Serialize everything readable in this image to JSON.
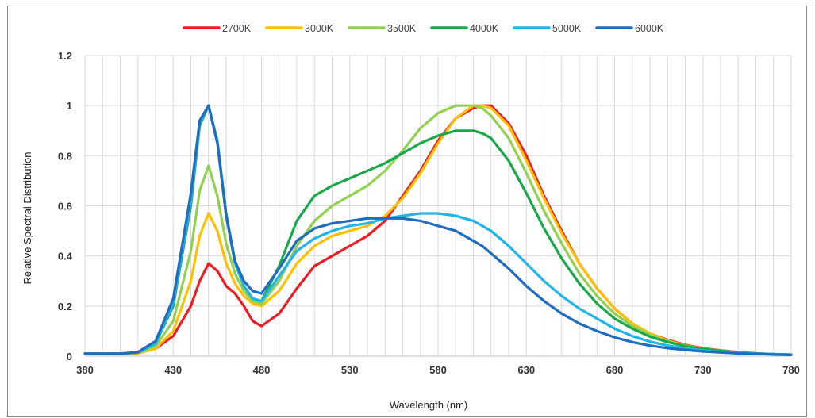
{
  "chart_data": {
    "type": "line",
    "title": "",
    "xlabel": "Wavelength (nm)",
    "ylabel": "Relative Spectral Distribution",
    "xlim": [
      380,
      780
    ],
    "ylim": [
      0,
      1.2
    ],
    "xticks": [
      "380",
      "430",
      "480",
      "530",
      "580",
      "630",
      "680",
      "730",
      "780"
    ],
    "yticks": [
      "0",
      "0.2",
      "0.4",
      "0.6",
      "0.8",
      "1",
      "1.2"
    ],
    "grid": "vertical every 10 nm, horizontal every 0.2",
    "legend_position": "top",
    "series": [
      {
        "name": "2700K",
        "color": "#ee1c24",
        "x": [
          380,
          400,
          410,
          420,
          430,
          440,
          445,
          450,
          455,
          460,
          465,
          470,
          475,
          480,
          490,
          500,
          510,
          520,
          530,
          540,
          550,
          560,
          570,
          580,
          590,
          600,
          605,
          610,
          620,
          630,
          640,
          650,
          660,
          670,
          680,
          690,
          700,
          710,
          720,
          730,
          740,
          750,
          760,
          770,
          780
        ],
        "y": [
          0.01,
          0.01,
          0.012,
          0.03,
          0.08,
          0.2,
          0.3,
          0.37,
          0.34,
          0.28,
          0.25,
          0.2,
          0.14,
          0.12,
          0.17,
          0.27,
          0.36,
          0.4,
          0.44,
          0.48,
          0.54,
          0.64,
          0.74,
          0.86,
          0.95,
          0.99,
          1.0,
          1.0,
          0.93,
          0.8,
          0.64,
          0.5,
          0.37,
          0.27,
          0.19,
          0.13,
          0.09,
          0.065,
          0.045,
          0.032,
          0.023,
          0.016,
          0.011,
          0.008,
          0.006
        ]
      },
      {
        "name": "3000K",
        "color": "#ffc000",
        "x": [
          380,
          400,
          410,
          420,
          430,
          440,
          445,
          450,
          455,
          460,
          465,
          470,
          475,
          480,
          490,
          500,
          510,
          520,
          530,
          540,
          550,
          560,
          570,
          580,
          590,
          600,
          605,
          610,
          620,
          630,
          640,
          650,
          660,
          670,
          680,
          690,
          700,
          710,
          720,
          730,
          740,
          750,
          760,
          770,
          780
        ],
        "y": [
          0.01,
          0.01,
          0.012,
          0.03,
          0.1,
          0.3,
          0.48,
          0.57,
          0.5,
          0.37,
          0.29,
          0.24,
          0.21,
          0.2,
          0.26,
          0.37,
          0.44,
          0.48,
          0.5,
          0.52,
          0.56,
          0.63,
          0.73,
          0.85,
          0.95,
          1.0,
          1.0,
          0.99,
          0.92,
          0.78,
          0.63,
          0.49,
          0.37,
          0.27,
          0.19,
          0.13,
          0.09,
          0.062,
          0.043,
          0.03,
          0.022,
          0.015,
          0.011,
          0.008,
          0.006
        ]
      },
      {
        "name": "3500K",
        "color": "#92d050",
        "x": [
          380,
          400,
          410,
          420,
          430,
          440,
          445,
          450,
          455,
          460,
          465,
          470,
          475,
          480,
          490,
          500,
          510,
          520,
          530,
          540,
          550,
          560,
          570,
          580,
          590,
          600,
          605,
          610,
          620,
          630,
          640,
          650,
          660,
          670,
          680,
          690,
          700,
          710,
          720,
          730,
          740,
          750,
          760,
          770,
          780
        ],
        "y": [
          0.01,
          0.01,
          0.014,
          0.04,
          0.14,
          0.42,
          0.66,
          0.76,
          0.64,
          0.45,
          0.33,
          0.26,
          0.22,
          0.21,
          0.3,
          0.44,
          0.54,
          0.6,
          0.64,
          0.68,
          0.74,
          0.82,
          0.91,
          0.97,
          1.0,
          1.0,
          0.99,
          0.96,
          0.87,
          0.73,
          0.58,
          0.45,
          0.33,
          0.24,
          0.17,
          0.12,
          0.085,
          0.06,
          0.042,
          0.03,
          0.022,
          0.015,
          0.011,
          0.008,
          0.006
        ]
      },
      {
        "name": "4000K",
        "color": "#18a84a",
        "x": [
          380,
          400,
          410,
          420,
          430,
          440,
          445,
          450,
          455,
          460,
          465,
          470,
          475,
          480,
          490,
          500,
          510,
          520,
          530,
          540,
          550,
          560,
          570,
          580,
          590,
          600,
          605,
          610,
          620,
          630,
          640,
          650,
          660,
          670,
          680,
          690,
          700,
          710,
          720,
          730,
          740,
          750,
          760,
          770,
          780
        ],
        "y": [
          0.01,
          0.01,
          0.015,
          0.05,
          0.2,
          0.6,
          0.92,
          1.0,
          0.86,
          0.57,
          0.38,
          0.28,
          0.23,
          0.22,
          0.36,
          0.54,
          0.64,
          0.68,
          0.71,
          0.74,
          0.77,
          0.81,
          0.85,
          0.88,
          0.9,
          0.9,
          0.89,
          0.87,
          0.78,
          0.65,
          0.51,
          0.39,
          0.29,
          0.21,
          0.15,
          0.11,
          0.078,
          0.056,
          0.04,
          0.029,
          0.021,
          0.015,
          0.011,
          0.008,
          0.006
        ]
      },
      {
        "name": "5000K",
        "color": "#1fb4ea",
        "x": [
          380,
          400,
          410,
          420,
          430,
          440,
          445,
          450,
          455,
          460,
          465,
          470,
          475,
          480,
          490,
          500,
          510,
          520,
          530,
          540,
          550,
          560,
          570,
          580,
          590,
          600,
          605,
          610,
          620,
          630,
          640,
          650,
          660,
          670,
          680,
          690,
          700,
          710,
          720,
          730,
          740,
          750,
          760,
          770,
          780
        ],
        "y": [
          0.01,
          0.01,
          0.015,
          0.05,
          0.21,
          0.62,
          0.93,
          1.0,
          0.86,
          0.56,
          0.37,
          0.28,
          0.23,
          0.22,
          0.32,
          0.42,
          0.47,
          0.5,
          0.52,
          0.53,
          0.55,
          0.56,
          0.57,
          0.57,
          0.56,
          0.54,
          0.52,
          0.5,
          0.44,
          0.37,
          0.3,
          0.24,
          0.19,
          0.15,
          0.11,
          0.08,
          0.058,
          0.042,
          0.031,
          0.023,
          0.017,
          0.013,
          0.01,
          0.008,
          0.006
        ]
      },
      {
        "name": "6000K",
        "color": "#1f6cc0",
        "x": [
          380,
          400,
          410,
          420,
          430,
          440,
          445,
          450,
          455,
          460,
          465,
          470,
          475,
          480,
          490,
          500,
          510,
          520,
          530,
          540,
          550,
          560,
          570,
          580,
          590,
          600,
          605,
          610,
          620,
          630,
          640,
          650,
          660,
          670,
          680,
          690,
          700,
          710,
          720,
          730,
          740,
          750,
          760,
          770,
          780
        ],
        "y": [
          0.01,
          0.01,
          0.016,
          0.06,
          0.23,
          0.65,
          0.94,
          1.0,
          0.85,
          0.56,
          0.38,
          0.3,
          0.26,
          0.25,
          0.35,
          0.46,
          0.51,
          0.53,
          0.54,
          0.55,
          0.55,
          0.55,
          0.54,
          0.52,
          0.5,
          0.46,
          0.44,
          0.41,
          0.35,
          0.28,
          0.22,
          0.17,
          0.13,
          0.1,
          0.075,
          0.056,
          0.042,
          0.032,
          0.025,
          0.019,
          0.015,
          0.011,
          0.009,
          0.007,
          0.005
        ]
      }
    ]
  }
}
